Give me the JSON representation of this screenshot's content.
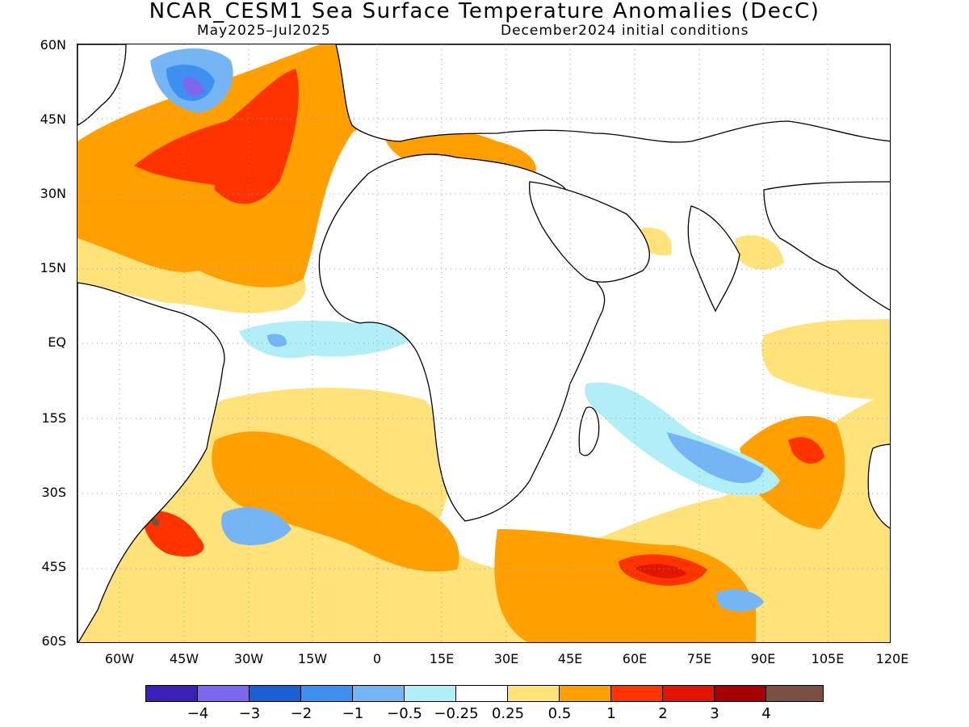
{
  "header": {
    "title": "NCAR_CESM1 Sea Surface Temperature Anomalies (DecC)",
    "period": "May2025–Jul2025",
    "init": "December2024 initial conditions"
  },
  "lat_labels": [
    "60N",
    "45N",
    "30N",
    "15N",
    "EQ",
    "15S",
    "30S",
    "45S",
    "60S"
  ],
  "lon_labels": [
    "60W",
    "45W",
    "30W",
    "15W",
    "0",
    "15E",
    "30E",
    "45E",
    "60E",
    "75E",
    "90E",
    "105E",
    "120E"
  ],
  "colorbar": {
    "colors": [
      "#3a20b8",
      "#7b68ee",
      "#1a5fd6",
      "#3d8ff0",
      "#75b4f5",
      "#b2eef8",
      "#ffffff",
      "#ffe37a",
      "#ffa000",
      "#ff3300",
      "#e31400",
      "#a80000",
      "#7a5040"
    ],
    "labels": [
      "−4",
      "−3",
      "−2",
      "−1",
      "−0.5",
      "−0.25",
      "0.25",
      "0.5",
      "1",
      "2",
      "3",
      "4"
    ]
  },
  "colors": {
    "land_outline": "#000000",
    "grid": "#999999"
  }
}
